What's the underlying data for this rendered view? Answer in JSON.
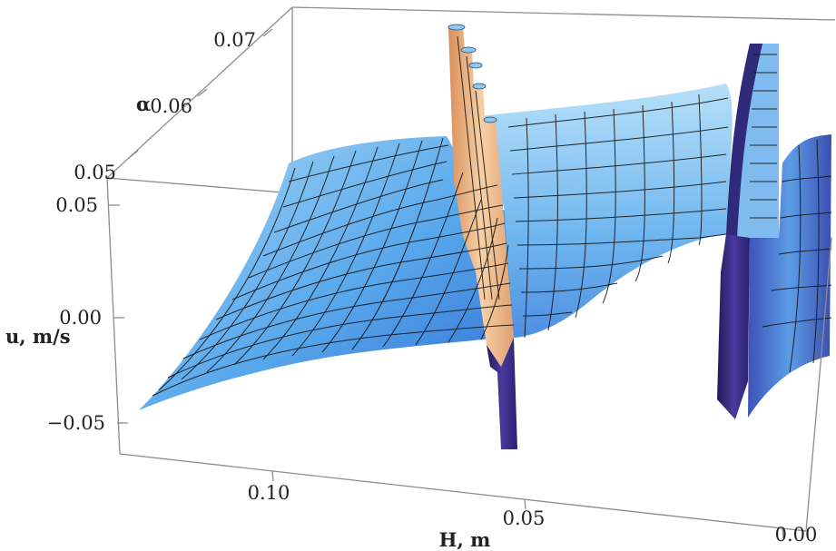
{
  "chart_data": {
    "type": "surface3d",
    "title": "",
    "xlabel": "H, m",
    "ylabel": "α",
    "zlabel": "u, m/s",
    "xlim": [
      0.0,
      0.12
    ],
    "ylim": [
      0.045,
      0.075
    ],
    "zlim": [
      -0.07,
      0.07
    ],
    "x_ticks": [
      {
        "value": 0.1,
        "label": "0.10"
      },
      {
        "value": 0.05,
        "label": "0.05"
      },
      {
        "value": 0.0,
        "label": "0.00"
      }
    ],
    "y_ticks": [
      {
        "value": 0.05,
        "label": "0.05"
      },
      {
        "value": 0.06,
        "label": "0.06"
      },
      {
        "value": 0.07,
        "label": "0.07"
      }
    ],
    "z_ticks": [
      {
        "value": 0.05,
        "label": "0.05"
      },
      {
        "value": 0.0,
        "label": "0.00"
      },
      {
        "value": -0.05,
        "label": "−0.05"
      }
    ],
    "surface": {
      "far_edge_profile": {
        "H": [
          0.12,
          0.1,
          0.08,
          0.063,
          0.045,
          0.03,
          0.017
        ],
        "u": [
          0.035,
          0.044,
          0.045,
          0.046,
          0.047,
          0.05,
          0.065
        ]
      },
      "near_edge_profile": {
        "H": [
          0.12,
          0.1,
          0.08,
          0.06,
          0.05,
          0.045,
          0.03,
          0.02,
          0.017
        ],
        "u": [
          -0.055,
          -0.048,
          -0.042,
          -0.035,
          -0.03,
          -0.02,
          -0.015,
          -0.012,
          0.0
        ]
      },
      "singularities": [
        {
          "H": 0.055,
          "u_max": 0.07,
          "u_min": -0.065,
          "color": "#f2c08a"
        },
        {
          "H": 0.017,
          "u_max": 0.07,
          "u_min": -0.05,
          "color": "#3a2f8a"
        }
      ]
    },
    "colors": {
      "surface_light": "#a9d8f6",
      "surface_mid": "#5aa9ec",
      "surface_dark": "#2f5fc4",
      "spike_peak": "#e9a86e",
      "deep_purple": "#33206e",
      "box": "#8c8c8c"
    },
    "grid": false
  }
}
